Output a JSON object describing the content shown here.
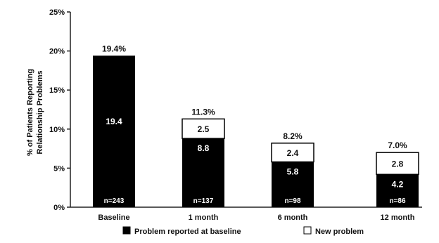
{
  "chart_data": {
    "type": "bar",
    "stacked": true,
    "title": "",
    "xlabel": "",
    "ylabel": "% of Patients Reporting Relationship Problems",
    "ylabel_lines": [
      "% of Patients Reporting",
      "Relationship Problems"
    ],
    "ylim": [
      0,
      25
    ],
    "yticks": [
      0,
      5,
      10,
      15,
      20,
      25
    ],
    "ytick_suffix": "%",
    "grid": false,
    "legend_position": "bottom",
    "categories": [
      "Baseline",
      "1 month",
      "6 month",
      "12 month"
    ],
    "series": [
      {
        "name": "Problem reported at baseline",
        "color": "#000000",
        "values": [
          19.4,
          8.8,
          5.8,
          4.2
        ],
        "labels": [
          "19.4",
          "8.8",
          "5.8",
          "4.2"
        ]
      },
      {
        "name": "New problem",
        "color": "#ffffff",
        "values": [
          0,
          2.5,
          2.4,
          2.8
        ],
        "labels": [
          "",
          "2.5",
          "2.4",
          "2.8"
        ]
      }
    ],
    "totals": [
      "19.4%",
      "11.3%",
      "8.2%",
      "7.0%"
    ],
    "n_labels": [
      "n=243",
      "n=137",
      "n=98",
      "n=86"
    ]
  }
}
